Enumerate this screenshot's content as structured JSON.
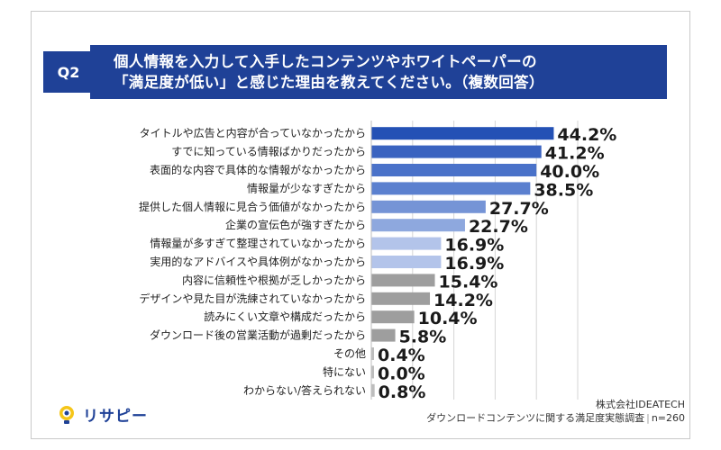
{
  "question": {
    "badge": "Q2",
    "title_line1": "個人情報を入力して入手したコンテンツやホワイトペーパーの",
    "title_line2": "「満足度が低い」と感じた理由を教えてください。（複数回答）"
  },
  "chart_data": {
    "type": "bar",
    "orientation": "horizontal",
    "xlim": [
      0,
      50
    ],
    "grid": true,
    "categories": [
      "タイトルや広告と内容が合っていなかったから",
      "すでに知っている情報ばかりだったから",
      "表面的な内容で具体的な情報がなかったから",
      "情報量が少なすぎたから",
      "提供した個人情報に見合う価値がなかったから",
      "企業の宣伝色が強すぎたから",
      "情報量が多すぎて整理されていなかったから",
      "実用的なアドバイスや具体例がなかったから",
      "内容に信頼性や根拠が乏しかったから",
      "デザインや見た目が洗練されていなかったから",
      "読みにくい文章や構成だったから",
      "ダウンロード後の営業活動が過剰だったから",
      "その他",
      "特にない",
      "わからない/答えられない"
    ],
    "values": [
      44.2,
      41.2,
      40.0,
      38.5,
      27.7,
      22.7,
      16.9,
      16.9,
      15.4,
      14.2,
      10.4,
      5.8,
      0.4,
      0.0,
      0.8
    ],
    "value_labels": [
      "44.2%",
      "41.2%",
      "40.0%",
      "38.5%",
      "27.7%",
      "22.7%",
      "16.9%",
      "16.9%",
      "15.4%",
      "14.2%",
      "10.4%",
      "5.8%",
      "0.4%",
      "0.0%",
      "0.8%"
    ],
    "colors": [
      "#2451b5",
      "#3a63c0",
      "#4a72c9",
      "#5b80cf",
      "#7594d6",
      "#8ea8de",
      "#b3c4ea",
      "#b3c4ea",
      "#9e9e9e",
      "#9e9e9e",
      "#9e9e9e",
      "#9e9e9e",
      "#bdbdbd",
      "#bdbdbd",
      "#bdbdbd"
    ]
  },
  "branding": {
    "logo_text": "リサピー",
    "brand_color": "#1f4197"
  },
  "source": {
    "company": "株式会社IDEATECH",
    "survey": "ダウンロードコンテンツに関する満足度実態調査",
    "n": "n=260"
  }
}
